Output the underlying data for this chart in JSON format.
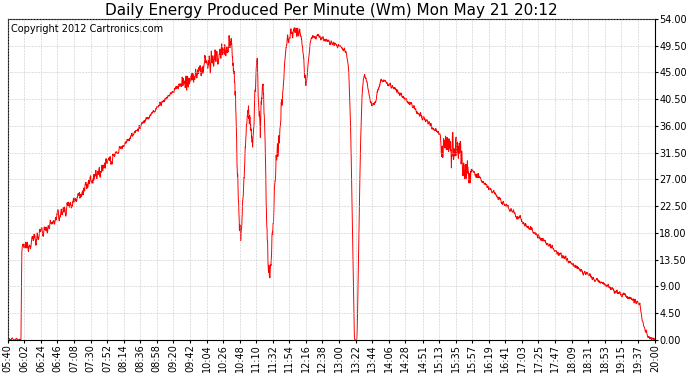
{
  "title": "Daily Energy Produced Per Minute (Wm) Mon May 21 20:12",
  "copyright": "Copyright 2012 Cartronics.com",
  "ymin": 0.0,
  "ymax": 54.0,
  "ytick_step": 4.5,
  "line_color": "#FF0000",
  "background_color": "#FFFFFF",
  "grid_color": "#BBBBBB",
  "x_labels": [
    "05:40",
    "06:02",
    "06:24",
    "06:46",
    "07:08",
    "07:30",
    "07:52",
    "08:14",
    "08:36",
    "08:58",
    "09:20",
    "09:42",
    "10:04",
    "10:26",
    "10:48",
    "11:10",
    "11:32",
    "11:54",
    "12:16",
    "12:38",
    "13:00",
    "13:22",
    "13:44",
    "14:06",
    "14:28",
    "14:51",
    "15:13",
    "15:35",
    "15:57",
    "16:19",
    "16:41",
    "17:03",
    "17:25",
    "17:47",
    "18:09",
    "18:31",
    "18:53",
    "19:15",
    "19:37",
    "20:00"
  ],
  "title_fontsize": 11,
  "copyright_fontsize": 7,
  "tick_fontsize": 7
}
